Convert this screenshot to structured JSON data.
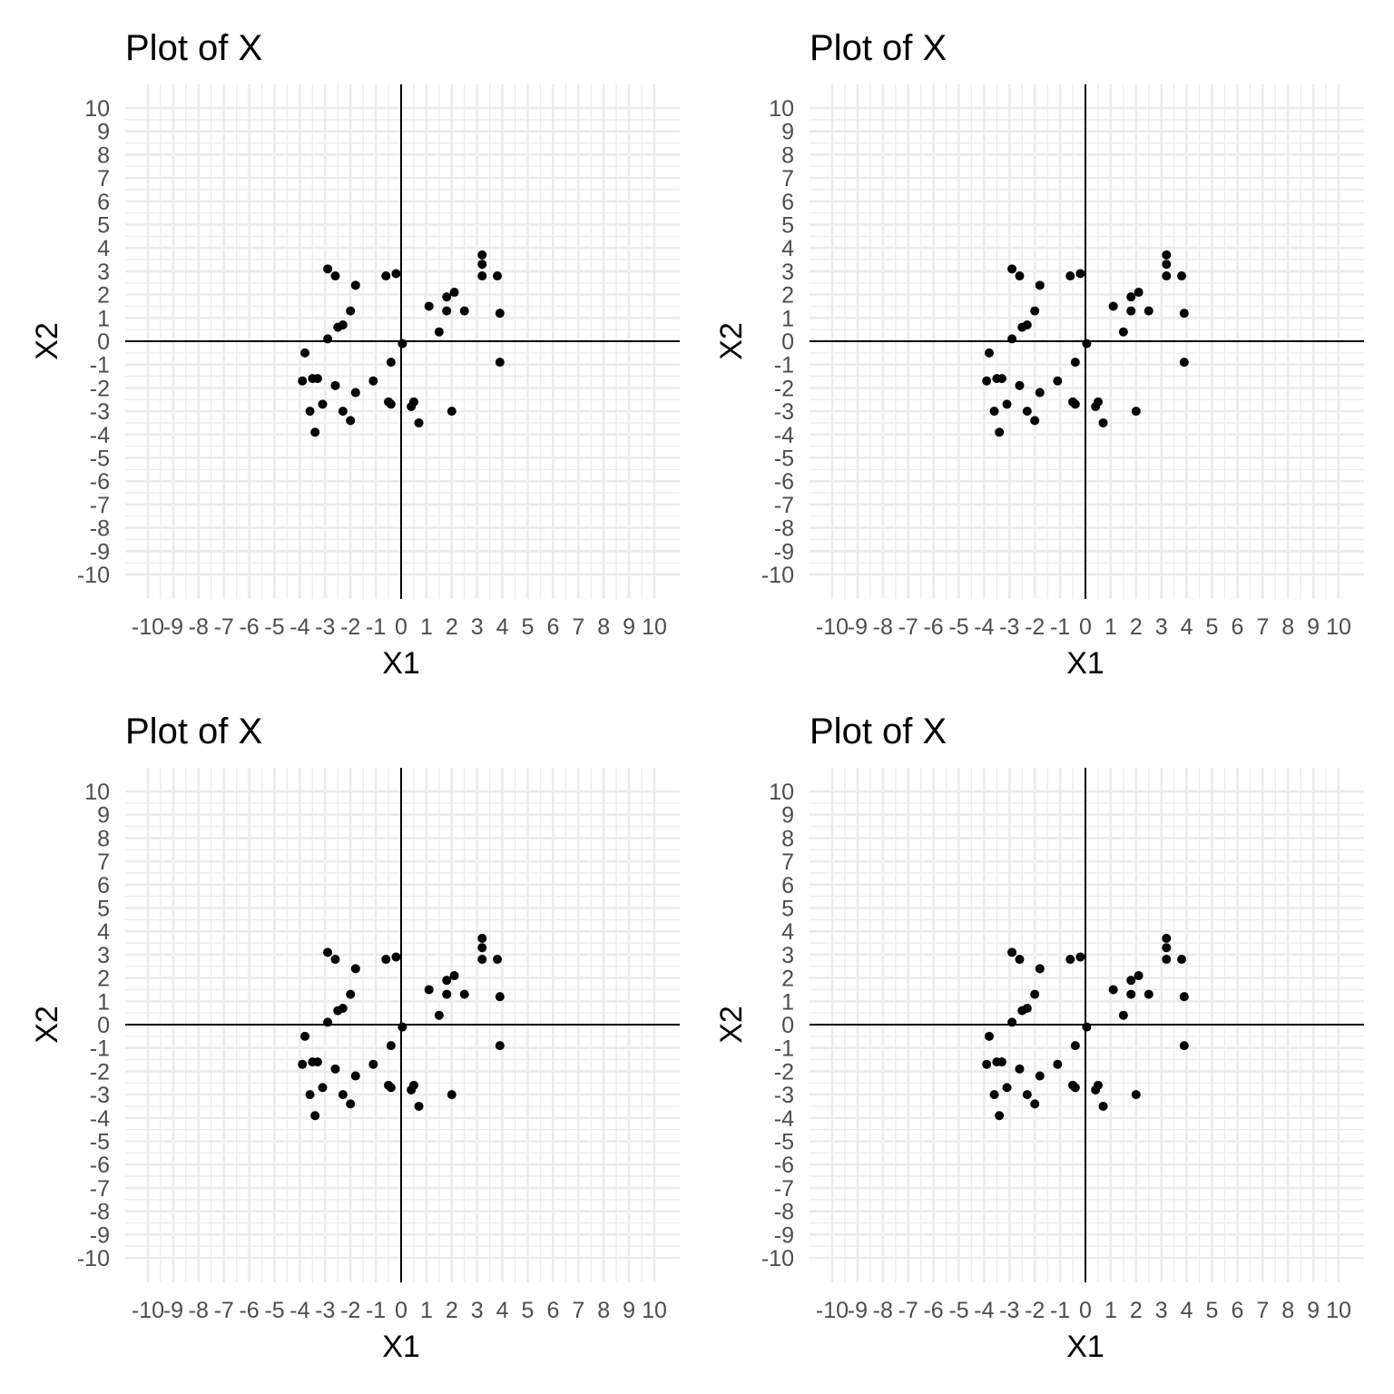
{
  "colors": {
    "background": "#ffffff",
    "grid": "#ebebeb",
    "axis_line": "#000000",
    "point": "#000000",
    "tick_text": "#4d4d4d"
  },
  "chart_data": [
    {
      "type": "scatter",
      "title": "Plot of X",
      "xlabel": "X1",
      "ylabel": "X2",
      "xlim": [
        -10,
        10
      ],
      "ylim": [
        -10,
        10
      ],
      "xticks": [
        -10,
        -9,
        -8,
        -7,
        -6,
        -5,
        -4,
        -3,
        -2,
        -1,
        0,
        1,
        2,
        3,
        4,
        5,
        6,
        7,
        8,
        9,
        10
      ],
      "yticks": [
        -10,
        -9,
        -8,
        -7,
        -6,
        -5,
        -4,
        -3,
        -2,
        -1,
        0,
        1,
        2,
        3,
        4,
        5,
        6,
        7,
        8,
        9,
        10
      ],
      "grid": true,
      "reference_lines": "x=0, y=0",
      "x": [
        -2.9,
        -2.6,
        -1.8,
        -0.6,
        -0.2,
        -2.0,
        -2.5,
        -2.3,
        -2.9,
        -3.8,
        0.05,
        -0.4,
        -3.3,
        -3.9,
        -3.5,
        -1.1,
        -2.6,
        -1.8,
        -3.1,
        -3.6,
        -2.3,
        -2.0,
        -3.4,
        -0.5,
        -0.4,
        0.4,
        0.5,
        0.7,
        2.0,
        1.1,
        1.8,
        2.1,
        1.5,
        1.8,
        2.5,
        3.2,
        3.2,
        3.2,
        3.8,
        3.9,
        3.9
      ],
      "y": [
        3.1,
        2.8,
        2.4,
        2.8,
        2.9,
        1.3,
        0.6,
        0.7,
        0.1,
        -0.5,
        -0.1,
        -0.9,
        -1.6,
        -1.7,
        -1.6,
        -1.7,
        -1.9,
        -2.2,
        -2.7,
        -3.0,
        -3.0,
        -3.4,
        -3.9,
        -2.6,
        -2.7,
        -2.8,
        -2.6,
        -3.5,
        -3.0,
        1.5,
        1.9,
        2.1,
        0.4,
        1.3,
        1.3,
        3.7,
        3.3,
        2.8,
        2.8,
        1.2,
        -0.9
      ]
    },
    {
      "type": "scatter",
      "title": "Plot of X",
      "xlabel": "X1",
      "ylabel": "X2",
      "xlim": [
        -10,
        10
      ],
      "ylim": [
        -10,
        10
      ],
      "xticks": [
        -10,
        -9,
        -8,
        -7,
        -6,
        -5,
        -4,
        -3,
        -2,
        -1,
        0,
        1,
        2,
        3,
        4,
        5,
        6,
        7,
        8,
        9,
        10
      ],
      "yticks": [
        -10,
        -9,
        -8,
        -7,
        -6,
        -5,
        -4,
        -3,
        -2,
        -1,
        0,
        1,
        2,
        3,
        4,
        5,
        6,
        7,
        8,
        9,
        10
      ],
      "grid": true,
      "reference_lines": "x=0, y=0",
      "x": [
        -2.9,
        -2.6,
        -1.8,
        -0.6,
        -0.2,
        -2.0,
        -2.5,
        -2.3,
        -2.9,
        -3.8,
        0.05,
        -0.4,
        -3.3,
        -3.9,
        -3.5,
        -1.1,
        -2.6,
        -1.8,
        -3.1,
        -3.6,
        -2.3,
        -2.0,
        -3.4,
        -0.5,
        -0.4,
        0.4,
        0.5,
        0.7,
        2.0,
        1.1,
        1.8,
        2.1,
        1.5,
        1.8,
        2.5,
        3.2,
        3.2,
        3.2,
        3.8,
        3.9,
        3.9
      ],
      "y": [
        3.1,
        2.8,
        2.4,
        2.8,
        2.9,
        1.3,
        0.6,
        0.7,
        0.1,
        -0.5,
        -0.1,
        -0.9,
        -1.6,
        -1.7,
        -1.6,
        -1.7,
        -1.9,
        -2.2,
        -2.7,
        -3.0,
        -3.0,
        -3.4,
        -3.9,
        -2.6,
        -2.7,
        -2.8,
        -2.6,
        -3.5,
        -3.0,
        1.5,
        1.9,
        2.1,
        0.4,
        1.3,
        1.3,
        3.7,
        3.3,
        2.8,
        2.8,
        1.2,
        -0.9
      ]
    },
    {
      "type": "scatter",
      "title": "Plot of X",
      "xlabel": "X1",
      "ylabel": "X2",
      "xlim": [
        -10,
        10
      ],
      "ylim": [
        -10,
        10
      ],
      "xticks": [
        -10,
        -9,
        -8,
        -7,
        -6,
        -5,
        -4,
        -3,
        -2,
        -1,
        0,
        1,
        2,
        3,
        4,
        5,
        6,
        7,
        8,
        9,
        10
      ],
      "yticks": [
        -10,
        -9,
        -8,
        -7,
        -6,
        -5,
        -4,
        -3,
        -2,
        -1,
        0,
        1,
        2,
        3,
        4,
        5,
        6,
        7,
        8,
        9,
        10
      ],
      "grid": true,
      "reference_lines": "x=0, y=0",
      "x": [
        -2.9,
        -2.6,
        -1.8,
        -0.6,
        -0.2,
        -2.0,
        -2.5,
        -2.3,
        -2.9,
        -3.8,
        0.05,
        -0.4,
        -3.3,
        -3.9,
        -3.5,
        -1.1,
        -2.6,
        -1.8,
        -3.1,
        -3.6,
        -2.3,
        -2.0,
        -3.4,
        -0.5,
        -0.4,
        0.4,
        0.5,
        0.7,
        2.0,
        1.1,
        1.8,
        2.1,
        1.5,
        1.8,
        2.5,
        3.2,
        3.2,
        3.2,
        3.8,
        3.9,
        3.9
      ],
      "y": [
        3.1,
        2.8,
        2.4,
        2.8,
        2.9,
        1.3,
        0.6,
        0.7,
        0.1,
        -0.5,
        -0.1,
        -0.9,
        -1.6,
        -1.7,
        -1.6,
        -1.7,
        -1.9,
        -2.2,
        -2.7,
        -3.0,
        -3.0,
        -3.4,
        -3.9,
        -2.6,
        -2.7,
        -2.8,
        -2.6,
        -3.5,
        -3.0,
        1.5,
        1.9,
        2.1,
        0.4,
        1.3,
        1.3,
        3.7,
        3.3,
        2.8,
        2.8,
        1.2,
        -0.9
      ]
    },
    {
      "type": "scatter",
      "title": "Plot of X",
      "xlabel": "X1",
      "ylabel": "X2",
      "xlim": [
        -10,
        10
      ],
      "ylim": [
        -10,
        10
      ],
      "xticks": [
        -10,
        -9,
        -8,
        -7,
        -6,
        -5,
        -4,
        -3,
        -2,
        -1,
        0,
        1,
        2,
        3,
        4,
        5,
        6,
        7,
        8,
        9,
        10
      ],
      "yticks": [
        -10,
        -9,
        -8,
        -7,
        -6,
        -5,
        -4,
        -3,
        -2,
        -1,
        0,
        1,
        2,
        3,
        4,
        5,
        6,
        7,
        8,
        9,
        10
      ],
      "grid": true,
      "reference_lines": "x=0, y=0",
      "x": [
        -2.9,
        -2.6,
        -1.8,
        -0.6,
        -0.2,
        -2.0,
        -2.5,
        -2.3,
        -2.9,
        -3.8,
        0.05,
        -0.4,
        -3.3,
        -3.9,
        -3.5,
        -1.1,
        -2.6,
        -1.8,
        -3.1,
        -3.6,
        -2.3,
        -2.0,
        -3.4,
        -0.5,
        -0.4,
        0.4,
        0.5,
        0.7,
        2.0,
        1.1,
        1.8,
        2.1,
        1.5,
        1.8,
        2.5,
        3.2,
        3.2,
        3.2,
        3.8,
        3.9,
        3.9
      ],
      "y": [
        3.1,
        2.8,
        2.4,
        2.8,
        2.9,
        1.3,
        0.6,
        0.7,
        0.1,
        -0.5,
        -0.1,
        -0.9,
        -1.6,
        -1.7,
        -1.6,
        -1.7,
        -1.9,
        -2.2,
        -2.7,
        -3.0,
        -3.0,
        -3.4,
        -3.9,
        -2.6,
        -2.7,
        -2.8,
        -2.6,
        -3.5,
        -3.0,
        1.5,
        1.9,
        2.1,
        0.4,
        1.3,
        1.3,
        3.7,
        3.3,
        2.8,
        2.8,
        1.2,
        -0.9
      ]
    }
  ]
}
